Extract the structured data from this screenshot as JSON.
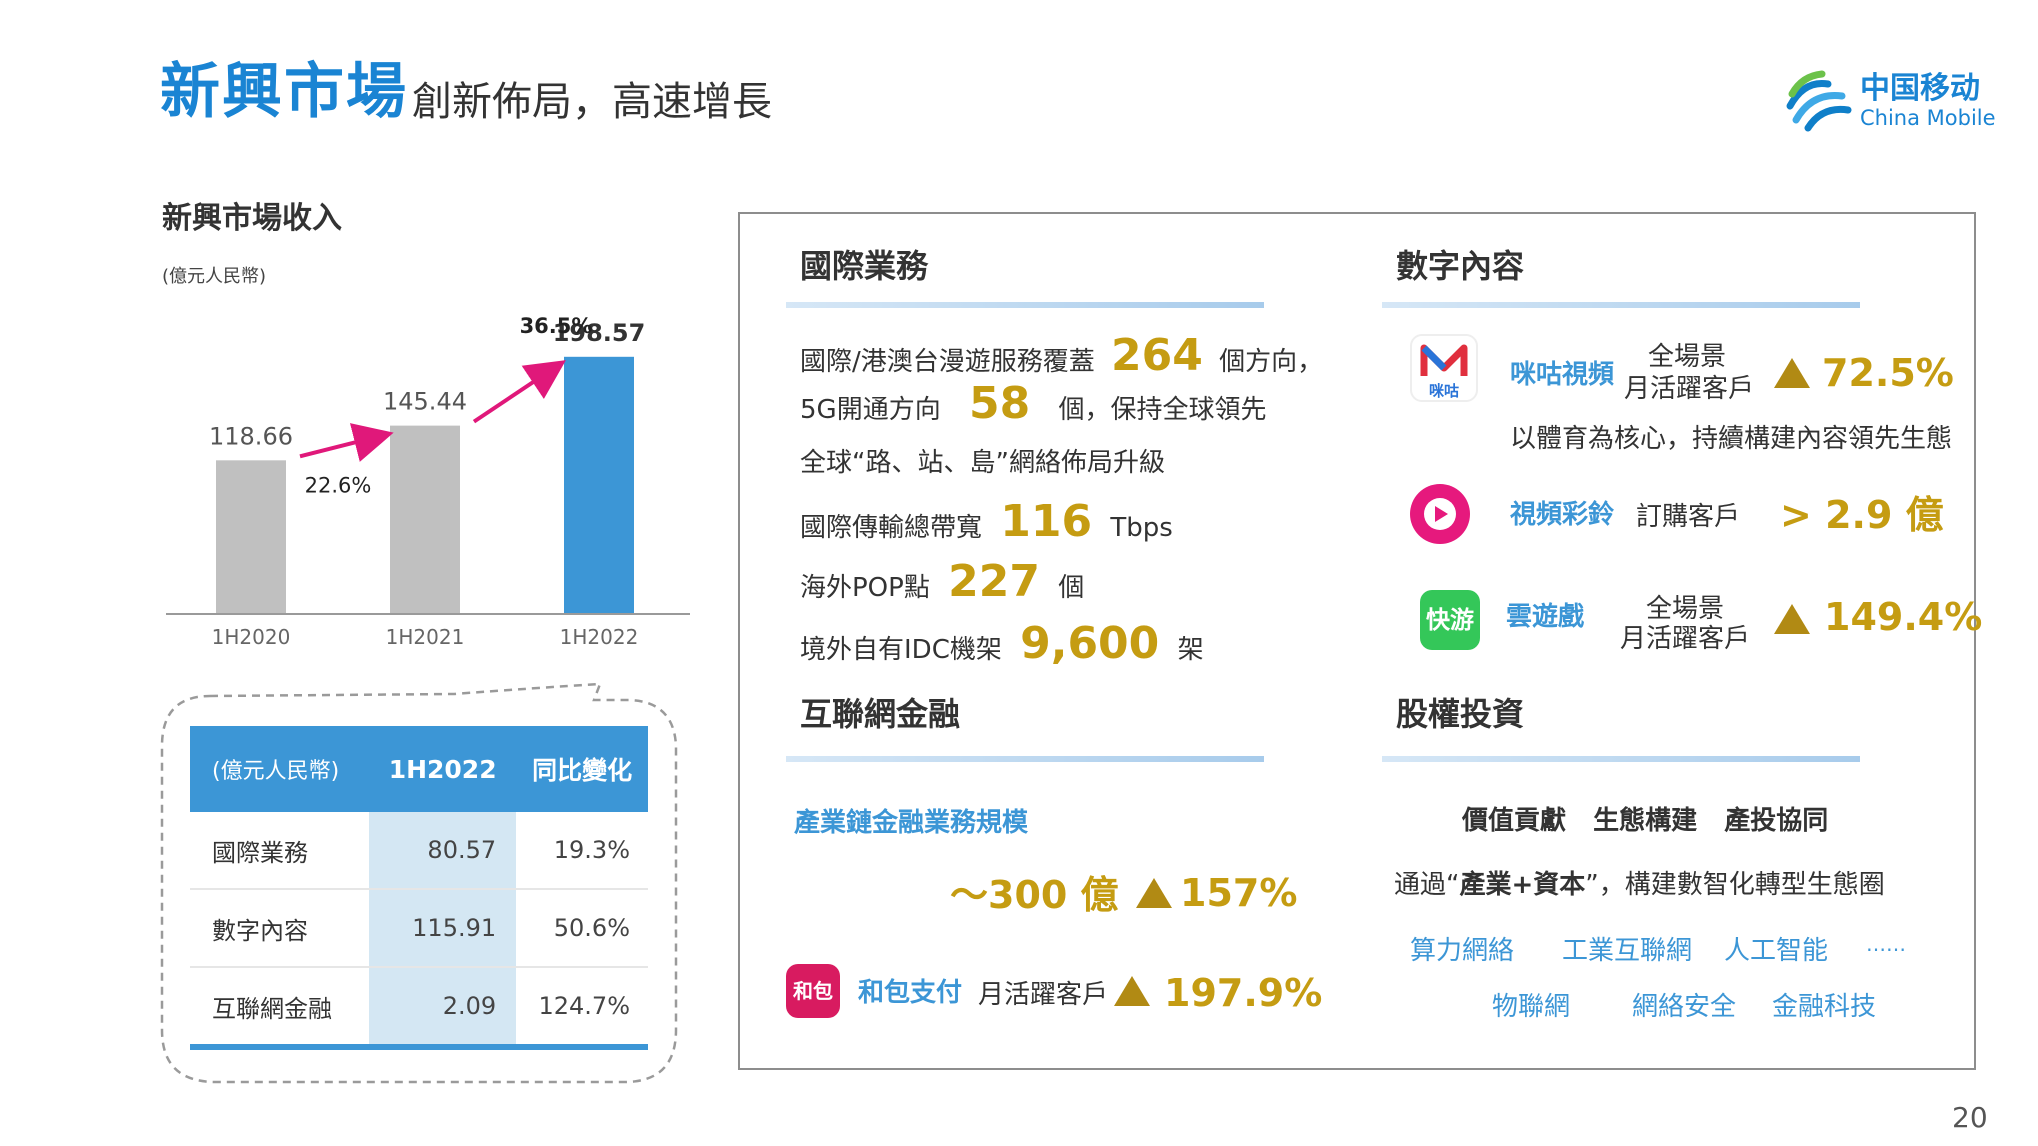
{
  "header": {
    "title": "新興市場",
    "subtitle": "創新佈局，高速增長",
    "logo_cn": "中国移动",
    "logo_en": "China Mobile"
  },
  "left": {
    "section_title": "新興市場收入",
    "unit": "(億元人民幣)"
  },
  "chart_data": {
    "type": "bar",
    "title": "新興市場收入",
    "ylabel": "",
    "unit": "(億元人民幣)",
    "categories": [
      "1H2020",
      "1H2021",
      "1H2022"
    ],
    "values": [
      118.66,
      145.44,
      198.57
    ],
    "value_labels": [
      "118.66",
      "145.44",
      "198.57"
    ],
    "bar_colors": [
      "#c0c0c0",
      "#c0c0c0",
      "#3c96d6"
    ],
    "growth_labels": [
      "22.6%",
      "36.5%"
    ],
    "arrow_color": "#e0187a",
    "ylim": [
      0,
      210
    ],
    "grid": false
  },
  "table": {
    "headers": [
      "(億元人民幣)",
      "1H2022",
      "同比變化"
    ],
    "rows": [
      [
        "國際業務",
        "80.57",
        "19.3%"
      ],
      [
        "數字內容",
        "115.91",
        "50.6%"
      ],
      [
        "互聯網金融",
        "2.09",
        "124.7%"
      ]
    ]
  },
  "intl": {
    "title": "國際業務",
    "l1a": "國際/港澳台漫遊服務覆蓋",
    "l1n": "264",
    "l1b": "個方向，",
    "l2a": "5G開通方向",
    "l2n": "58",
    "l2b": "個，保持全球領先",
    "l3": "全球“路、站、島”網絡佈局升級",
    "l4a": "國際傳輸總帶寬",
    "l4n": "116",
    "l4b": "Tbps",
    "l5a": "海外POP點",
    "l5n": "227",
    "l5b": "個",
    "l6a": "境外自有IDC機架",
    "l6n": "9,600",
    "l6b": "架"
  },
  "fin": {
    "title": "互聯網金融",
    "scale_label": "產業鏈金融業務規模",
    "scale_value": "～300 億",
    "scale_growth": "157%",
    "pay_name": "和包支付",
    "pay_metric": "月活躍客戶",
    "pay_growth": "197.9%",
    "pay_icon_text": "和包"
  },
  "digital": {
    "title": "數字內容",
    "migu_name": "咪咕視頻",
    "migu_metric_1": "全場景",
    "migu_metric_2": "月活躍客戶",
    "migu_growth": "72.5%",
    "migu_desc": "以體育為核心，持續構建內容領先生態",
    "migu_icon_text": "咪咕",
    "ring_name": "視頻彩鈴",
    "ring_metric": "訂購客戶",
    "ring_value": "> 2.9 億",
    "game_name": "雲遊戲",
    "game_metric_1": "全場景",
    "game_metric_2": "月活躍客戶",
    "game_growth": "149.4%",
    "game_icon_text": "快游"
  },
  "equity": {
    "title": "股權投資",
    "tags": "價值貢獻   生態構建   產投協同",
    "desc_a": "通過“",
    "desc_b": "產業+資本",
    "desc_c": "”，構建數智化轉型生態圈",
    "items_row1": [
      "算力網絡",
      "工業互聯網",
      "人工智能",
      "……"
    ],
    "items_row2": [
      "物聯網",
      "網絡安全",
      "金融科技"
    ]
  },
  "page_number": "20"
}
